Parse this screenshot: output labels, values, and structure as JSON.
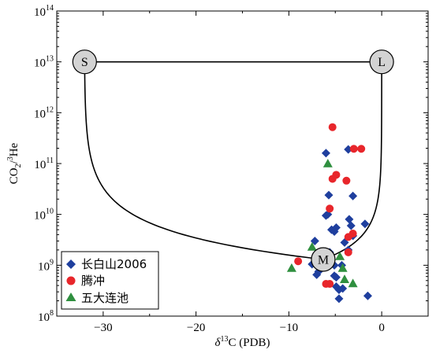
{
  "chart_data": {
    "type": "scatter",
    "xlabel_delta": "δ",
    "xlabel_sup": "13",
    "xlabel_rest": "C (PDB)",
    "ylabel_main": "CO",
    "ylabel_sub": "2",
    "ylabel_slash": "/",
    "ylabel_sup": "3",
    "ylabel_end": "He",
    "xlim": [
      -35,
      5
    ],
    "ylim_log10": [
      8,
      14
    ],
    "y_scale": "log",
    "x_ticks": [
      -30,
      -20,
      -10,
      0
    ],
    "x_tick_labels": [
      "−30",
      "−20",
      "−10",
      "0"
    ],
    "y_ticks_exp": [
      8,
      9,
      10,
      11,
      12,
      13,
      14
    ],
    "y_tick_base": "10",
    "y_tick_exps": [
      "8",
      "9",
      "10",
      "11",
      "12",
      "13",
      "14"
    ],
    "end_members": [
      {
        "label": "S",
        "x": -32,
        "y": 10000000000000.0
      },
      {
        "label": "L",
        "x": 0,
        "y": 10000000000000.0
      },
      {
        "label": "M",
        "x": -6.3,
        "y": 1300000000.0
      }
    ],
    "legend_position": "bottom-left",
    "series": [
      {
        "name": "长白山2006",
        "marker": "diamond",
        "color": "#1f3f9e",
        "points": [
          [
            -3.6,
            190000000000.0
          ],
          [
            -6.0,
            160000000000.0
          ],
          [
            -5.7,
            24000000000.0
          ],
          [
            -3.1,
            23000000000.0
          ],
          [
            -6.0,
            9500000000.0
          ],
          [
            -5.8,
            10000000000.0
          ],
          [
            -3.5,
            8000000000.0
          ],
          [
            -3.3,
            6000000000.0
          ],
          [
            -1.8,
            6500000000.0
          ],
          [
            -4.9,
            5500000000.0
          ],
          [
            -5.4,
            5000000000.0
          ],
          [
            -5.1,
            4600000000.0
          ],
          [
            -3.1,
            3800000000.0
          ],
          [
            -4.0,
            2800000000.0
          ],
          [
            -7.2,
            3000000000.0
          ],
          [
            -3.6,
            2000000000.0
          ],
          [
            -7.0,
            1700000000.0
          ],
          [
            -5.6,
            1800000000.0
          ],
          [
            -7.5,
            1050000000.0
          ],
          [
            -5.1,
            1000000000.0
          ],
          [
            -4.3,
            1000000000.0
          ],
          [
            -6.8,
            750000000.0
          ],
          [
            -7.0,
            650000000.0
          ],
          [
            -5.1,
            620000000.0
          ],
          [
            -4.9,
            580000000.0
          ],
          [
            -4.2,
            350000000.0
          ],
          [
            -4.6,
            330000000.0
          ],
          [
            -1.5,
            250000000.0
          ],
          [
            -4.6,
            220000000.0
          ],
          [
            -4.9,
            380000000.0
          ]
        ]
      },
      {
        "name": "腾冲",
        "marker": "circle",
        "color": "#e8262b",
        "points": [
          [
            -5.3,
            520000000000.0
          ],
          [
            -3.0,
            195000000000.0
          ],
          [
            -2.2,
            195000000000.0
          ],
          [
            -4.9,
            60000000000.0
          ],
          [
            -5.3,
            50000000000.0
          ],
          [
            -3.8,
            46000000000.0
          ],
          [
            -5.6,
            13000000000.0
          ],
          [
            -3.1,
            4200000000.0
          ],
          [
            -3.6,
            3600000000.0
          ],
          [
            -3.6,
            1800000000.0
          ],
          [
            -9.0,
            1200000000.0
          ],
          [
            -6.0,
            430000000.0
          ],
          [
            -5.6,
            430000000.0
          ]
        ]
      },
      {
        "name": "五大连池",
        "marker": "triangle",
        "color": "#2f8f3f",
        "points": [
          [
            -5.8,
            100000000000.0
          ],
          [
            -7.5,
            2300000000.0
          ],
          [
            -9.7,
            880000000.0
          ],
          [
            -4.2,
            880000000.0
          ],
          [
            -4.0,
            530000000.0
          ],
          [
            -3.1,
            440000000.0
          ],
          [
            -4.5,
            1500000000.0
          ]
        ]
      }
    ]
  }
}
